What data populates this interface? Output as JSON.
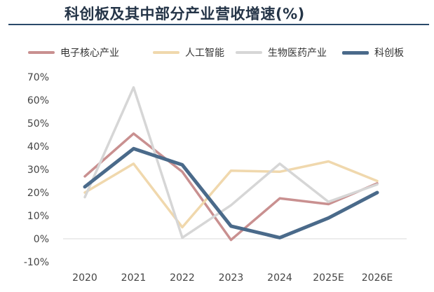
{
  "page_title": "科创板及其中部分产业营收增速(%)",
  "chart_data": {
    "type": "line",
    "title": "科创板及其中部分产业营收增速(%)",
    "xlabel": "",
    "ylabel": "",
    "categories": [
      "2020",
      "2021",
      "2022",
      "2023",
      "2024",
      "2025E",
      "2026E"
    ],
    "ylim": [
      -10,
      70
    ],
    "yticks": [
      -10,
      0,
      10,
      20,
      30,
      40,
      50,
      60,
      70
    ],
    "ytick_labels": [
      "-10%",
      "0%",
      "10%",
      "20%",
      "30%",
      "40%",
      "50%",
      "60%",
      "70%"
    ],
    "grid": false,
    "legend_position": "top",
    "series": [
      {
        "name": "电子核心产业",
        "color": "#c99090",
        "values": [
          27,
          45.5,
          29,
          -0.5,
          17.5,
          15,
          24
        ]
      },
      {
        "name": "人工智能",
        "color": "#f0d8ad",
        "values": [
          20,
          32.5,
          5,
          29.5,
          29,
          33.5,
          25
        ]
      },
      {
        "name": "生物医药产业",
        "color": "#d6d6d6",
        "values": [
          18,
          65.5,
          0.5,
          14.5,
          32.5,
          16,
          23.5
        ]
      },
      {
        "name": "科创板",
        "color": "#4a6a8a",
        "values": [
          22.5,
          39,
          32,
          5.5,
          0.5,
          9,
          20
        ]
      }
    ]
  }
}
